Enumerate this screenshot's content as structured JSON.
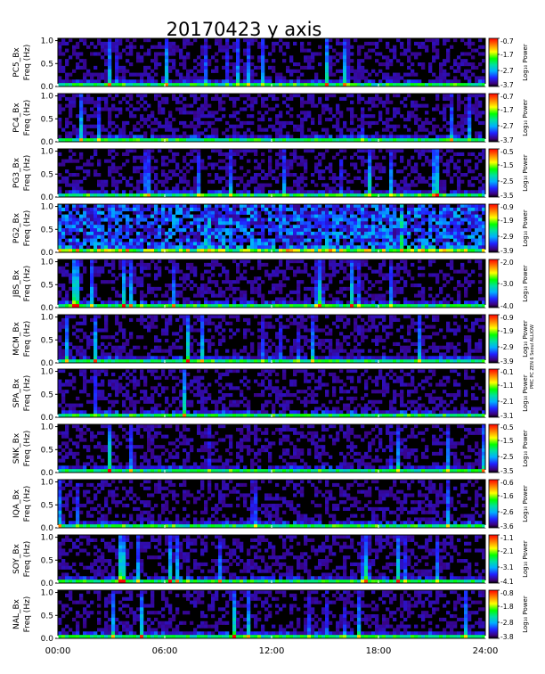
{
  "chart_data": {
    "type": "heatmap",
    "title": "20170423  y axis",
    "x": {
      "ticks": [
        "00:00",
        "06:00",
        "12:00",
        "18:00",
        "24:00"
      ],
      "range_hours": [
        0,
        24
      ]
    },
    "y_ticks": [
      "0.0",
      "0.5",
      "1.0"
    ],
    "y_range": [
      0,
      1.05
    ],
    "colorbar_label": "Log₁₀ Power",
    "side_note": "PMC PC ZEN 6 Seoul ALLIOW",
    "panels": [
      {
        "station": "PC5",
        "ylabel1": "PC5_Bx",
        "ylabel2": "Freq (Hz)",
        "cb_ticks": [
          "-0.7",
          "-1.7",
          "-2.7",
          "-3.7"
        ],
        "cb_range": [
          -3.7,
          -0.7
        ]
      },
      {
        "station": "PC4",
        "ylabel1": "PC4_Bx",
        "ylabel2": "Freq (Hz)",
        "cb_ticks": [
          "-0.7",
          "-1.7",
          "-2.7",
          "-3.7"
        ],
        "cb_range": [
          -3.7,
          -0.7
        ]
      },
      {
        "station": "PG3",
        "ylabel1": "PG3_Bx",
        "ylabel2": "Freq (Hz)",
        "cb_ticks": [
          "-0.5",
          "-1.5",
          "-2.5",
          "-3.5"
        ],
        "cb_range": [
          -3.5,
          -0.5
        ]
      },
      {
        "station": "PG2",
        "ylabel1": "PG2_Bx",
        "ylabel2": "Freq (Hz)",
        "cb_ticks": [
          "-0.9",
          "-1.9",
          "-2.9",
          "-3.9"
        ],
        "cb_range": [
          -3.9,
          -0.9
        ]
      },
      {
        "station": "JBS",
        "ylabel1": "JBS_Bx",
        "ylabel2": "Freq (Hz)",
        "cb_ticks": [
          "-2.0",
          "-3.0",
          "-4.0"
        ],
        "cb_range": [
          -4.0,
          -2.0
        ]
      },
      {
        "station": "MCM",
        "ylabel1": "MCM_Bx",
        "ylabel2": "Freq (Hz)",
        "cb_ticks": [
          "-0.9",
          "-1.9",
          "-2.9",
          "-3.9"
        ],
        "cb_range": [
          -3.9,
          -0.9
        ]
      },
      {
        "station": "SPA",
        "ylabel1": "SPA_Bx",
        "ylabel2": "Freq (Hz)",
        "cb_ticks": [
          "-0.1",
          "-1.1",
          "-2.1",
          "-3.1"
        ],
        "cb_range": [
          -3.1,
          -0.1
        ]
      },
      {
        "station": "SNK",
        "ylabel1": "SNK_Bx",
        "ylabel2": "Freq (Hz)",
        "cb_ticks": [
          "-0.5",
          "-1.5",
          "-2.5",
          "-3.5"
        ],
        "cb_range": [
          -3.5,
          -0.5
        ]
      },
      {
        "station": "IQA",
        "ylabel1": "IQA_Bx",
        "ylabel2": "Freq (Hz)",
        "cb_ticks": [
          "-0.6",
          "-1.6",
          "-2.6",
          "-3.6"
        ],
        "cb_range": [
          -3.6,
          -0.6
        ]
      },
      {
        "station": "SOY",
        "ylabel1": "SOY_Bx",
        "ylabel2": "Freq (Hz)",
        "cb_ticks": [
          "-1.1",
          "-2.1",
          "-3.1",
          "-4.1"
        ],
        "cb_range": [
          -4.1,
          -1.1
        ]
      },
      {
        "station": "NAL",
        "ylabel1": "NAL_Bx",
        "ylabel2": "Freq (Hz)",
        "cb_ticks": [
          "-0.8",
          "-1.8",
          "-2.8",
          "-3.8"
        ],
        "cb_range": [
          -3.8,
          -0.8
        ]
      }
    ]
  }
}
